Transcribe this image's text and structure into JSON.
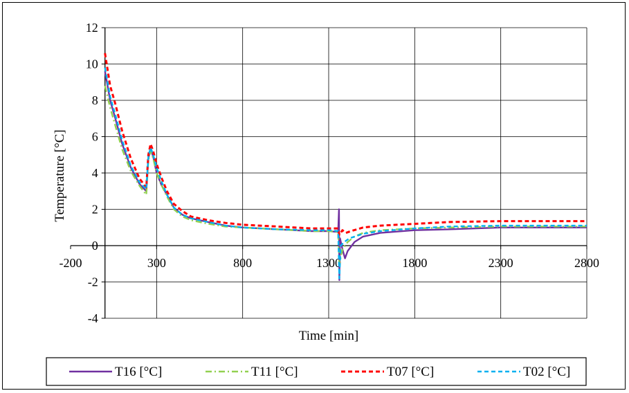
{
  "chart_data": {
    "type": "line",
    "xlabel": "Time [min]",
    "ylabel": "Temperature [°C]",
    "xlim": [
      -200,
      2800
    ],
    "ylim": [
      -4,
      12
    ],
    "x_ticks": [
      -200,
      300,
      800,
      1300,
      1800,
      2300,
      2800
    ],
    "y_ticks": [
      -4,
      -2,
      0,
      2,
      4,
      6,
      8,
      10,
      12
    ],
    "grid": true,
    "legend_position": "bottom",
    "series": [
      {
        "name": "T16 [°C]",
        "color": "#7030a0",
        "dash": "solid",
        "points": [
          [
            0,
            9.6
          ],
          [
            30,
            8.0
          ],
          [
            60,
            7.0
          ],
          [
            100,
            5.6
          ],
          [
            150,
            4.3
          ],
          [
            200,
            3.4
          ],
          [
            240,
            3.0
          ],
          [
            252,
            4.8
          ],
          [
            265,
            5.3
          ],
          [
            280,
            4.9
          ],
          [
            300,
            4.0
          ],
          [
            330,
            3.3
          ],
          [
            360,
            2.8
          ],
          [
            400,
            2.1
          ],
          [
            450,
            1.7
          ],
          [
            500,
            1.5
          ],
          [
            600,
            1.3
          ],
          [
            700,
            1.1
          ],
          [
            800,
            1.0
          ],
          [
            900,
            0.95
          ],
          [
            1000,
            0.9
          ],
          [
            1100,
            0.85
          ],
          [
            1200,
            0.8
          ],
          [
            1300,
            0.8
          ],
          [
            1355,
            0.75
          ],
          [
            1360,
            2.0
          ],
          [
            1362,
            -1.9
          ],
          [
            1366,
            0.4
          ],
          [
            1380,
            -0.2
          ],
          [
            1395,
            -0.7
          ],
          [
            1410,
            -0.3
          ],
          [
            1450,
            0.2
          ],
          [
            1500,
            0.5
          ],
          [
            1600,
            0.7
          ],
          [
            1800,
            0.85
          ],
          [
            2000,
            0.9
          ],
          [
            2300,
            1.0
          ],
          [
            2600,
            1.0
          ],
          [
            2800,
            1.0
          ]
        ]
      },
      {
        "name": "T11 [°C]",
        "color": "#92d050",
        "dash": "dashdot",
        "points": [
          [
            0,
            8.8
          ],
          [
            30,
            7.6
          ],
          [
            60,
            6.6
          ],
          [
            100,
            5.3
          ],
          [
            150,
            4.1
          ],
          [
            200,
            3.3
          ],
          [
            240,
            2.8
          ],
          [
            252,
            4.7
          ],
          [
            265,
            5.2
          ],
          [
            280,
            4.8
          ],
          [
            300,
            4.0
          ],
          [
            330,
            3.3
          ],
          [
            360,
            2.7
          ],
          [
            400,
            2.0
          ],
          [
            450,
            1.6
          ],
          [
            500,
            1.4
          ],
          [
            600,
            1.2
          ],
          [
            700,
            1.05
          ],
          [
            800,
            1.0
          ],
          [
            900,
            0.95
          ],
          [
            1000,
            0.9
          ],
          [
            1100,
            0.85
          ],
          [
            1200,
            0.8
          ],
          [
            1300,
            0.8
          ],
          [
            1355,
            0.75
          ],
          [
            1362,
            -1.0
          ],
          [
            1380,
            -0.2
          ],
          [
            1410,
            0.2
          ],
          [
            1450,
            0.5
          ],
          [
            1500,
            0.7
          ],
          [
            1600,
            0.85
          ],
          [
            1800,
            0.95
          ],
          [
            2000,
            1.0
          ],
          [
            2300,
            1.05
          ],
          [
            2600,
            1.05
          ],
          [
            2800,
            1.05
          ]
        ]
      },
      {
        "name": "T07 [°C]",
        "color": "#ff0000",
        "dash": "dashed",
        "points": [
          [
            0,
            10.6
          ],
          [
            30,
            8.8
          ],
          [
            60,
            7.8
          ],
          [
            100,
            6.3
          ],
          [
            150,
            4.8
          ],
          [
            200,
            3.7
          ],
          [
            240,
            3.2
          ],
          [
            252,
            5.0
          ],
          [
            265,
            5.6
          ],
          [
            280,
            5.2
          ],
          [
            300,
            4.5
          ],
          [
            330,
            3.7
          ],
          [
            360,
            3.0
          ],
          [
            400,
            2.3
          ],
          [
            450,
            1.9
          ],
          [
            500,
            1.6
          ],
          [
            600,
            1.4
          ],
          [
            700,
            1.25
          ],
          [
            800,
            1.15
          ],
          [
            900,
            1.1
          ],
          [
            1000,
            1.05
          ],
          [
            1100,
            1.0
          ],
          [
            1200,
            0.95
          ],
          [
            1300,
            0.95
          ],
          [
            1355,
            0.95
          ],
          [
            1362,
            0.6
          ],
          [
            1380,
            0.85
          ],
          [
            1400,
            0.7
          ],
          [
            1430,
            0.8
          ],
          [
            1500,
            1.0
          ],
          [
            1600,
            1.1
          ],
          [
            1800,
            1.2
          ],
          [
            2000,
            1.3
          ],
          [
            2300,
            1.35
          ],
          [
            2600,
            1.35
          ],
          [
            2800,
            1.35
          ]
        ]
      },
      {
        "name": "T02 [°C]",
        "color": "#00b0f0",
        "dash": "dashed",
        "points": [
          [
            0,
            9.8
          ],
          [
            30,
            8.2
          ],
          [
            60,
            7.2
          ],
          [
            100,
            5.8
          ],
          [
            150,
            4.4
          ],
          [
            200,
            3.5
          ],
          [
            240,
            3.1
          ],
          [
            252,
            4.9
          ],
          [
            265,
            5.4
          ],
          [
            280,
            5.0
          ],
          [
            300,
            4.3
          ],
          [
            330,
            3.5
          ],
          [
            360,
            2.8
          ],
          [
            400,
            2.1
          ],
          [
            450,
            1.7
          ],
          [
            500,
            1.5
          ],
          [
            600,
            1.3
          ],
          [
            700,
            1.1
          ],
          [
            800,
            1.0
          ],
          [
            900,
            0.95
          ],
          [
            1000,
            0.9
          ],
          [
            1100,
            0.88
          ],
          [
            1200,
            0.85
          ],
          [
            1300,
            0.85
          ],
          [
            1355,
            0.8
          ],
          [
            1362,
            -1.8
          ],
          [
            1370,
            0.0
          ],
          [
            1390,
            0.2
          ],
          [
            1420,
            0.4
          ],
          [
            1500,
            0.65
          ],
          [
            1600,
            0.8
          ],
          [
            1800,
            0.95
          ],
          [
            2000,
            1.05
          ],
          [
            2300,
            1.1
          ],
          [
            2600,
            1.1
          ],
          [
            2800,
            1.1
          ]
        ]
      }
    ]
  }
}
